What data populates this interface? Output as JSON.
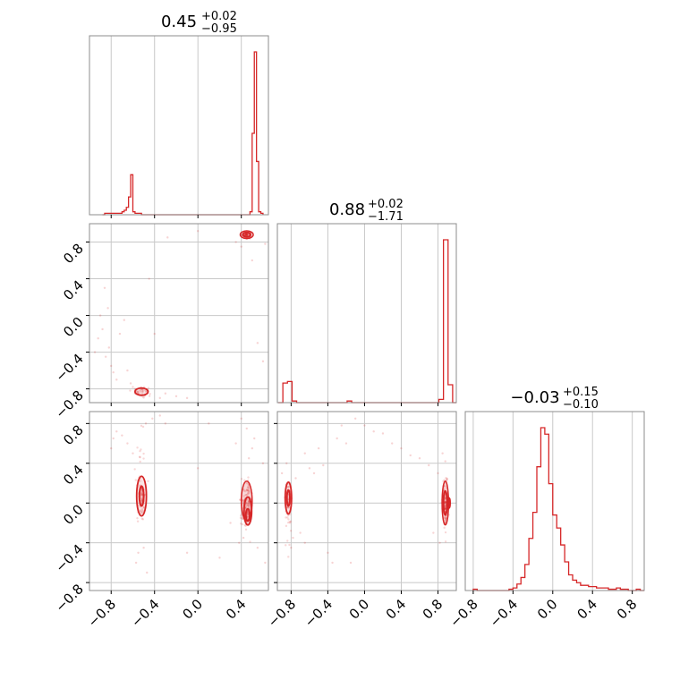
{
  "chart_data": {
    "type": "corner",
    "color": "#d62728",
    "grid": true,
    "parameters": [
      {
        "title": {
          "value": "0.45",
          "plus": "+0.02",
          "minus": "−0.95"
        },
        "range": [
          -1.0,
          0.65
        ],
        "ticks": [
          -0.8,
          -0.4,
          0.0,
          0.4
        ],
        "tick_labels": [
          "−0.8",
          "−0.4",
          "0.0",
          "0.4"
        ],
        "histogram": {
          "bins": [
            -0.88,
            -0.86,
            -0.84,
            -0.82,
            -0.8,
            -0.78,
            -0.76,
            -0.74,
            -0.72,
            -0.7,
            -0.68,
            -0.66,
            -0.64,
            -0.62,
            -0.6,
            -0.58,
            -0.56,
            -0.54,
            -0.52,
            -0.5,
            -0.48,
            -0.46,
            -0.44,
            -0.42,
            -0.4,
            -0.38,
            -0.36,
            -0.34,
            -0.32,
            -0.3,
            -0.28,
            -0.26,
            -0.24,
            -0.22,
            -0.2,
            -0.18,
            -0.16,
            -0.14,
            -0.12,
            -0.1,
            -0.08,
            -0.06,
            -0.04,
            -0.02,
            0.0,
            0.02,
            0.04,
            0.06,
            0.08,
            0.1,
            0.12,
            0.14,
            0.16,
            0.18,
            0.2,
            0.22,
            0.24,
            0.26,
            0.28,
            0.3,
            0.32,
            0.34,
            0.36,
            0.38,
            0.4,
            0.42,
            0.44,
            0.46,
            0.48,
            0.5,
            0.52,
            0.54,
            0.56,
            0.58
          ],
          "counts": [
            0,
            1,
            1,
            1,
            1,
            1,
            1,
            1,
            1,
            2,
            3,
            5,
            12,
            27,
            2,
            1,
            1,
            1,
            0,
            0,
            0,
            0,
            0,
            0,
            0,
            0,
            0,
            0,
            0,
            0,
            0,
            0,
            0,
            0,
            0,
            0,
            0,
            0,
            0,
            0,
            0,
            0,
            0,
            0,
            0,
            0,
            0,
            0,
            0,
            0,
            0,
            0,
            0,
            0,
            0,
            0,
            0,
            0,
            0,
            0,
            0,
            0,
            0,
            0,
            0,
            0,
            0,
            0,
            2,
            55,
            110,
            36,
            2,
            1
          ]
        }
      },
      {
        "title": {
          "value": "0.88",
          "plus": "+0.02",
          "minus": "−1.71"
        },
        "range": [
          -0.95,
          1.0
        ],
        "ticks": [
          -0.8,
          -0.4,
          0.0,
          0.4,
          0.8
        ],
        "tick_labels": [
          "−0.8",
          "−0.4",
          "0.0",
          "0.4",
          "0.8"
        ],
        "histogram": {
          "bins": [
            -0.94,
            -0.89,
            -0.84,
            -0.79,
            -0.74,
            -0.69,
            -0.64,
            -0.59,
            -0.54,
            -0.49,
            -0.44,
            -0.39,
            -0.34,
            -0.29,
            -0.24,
            -0.19,
            -0.14,
            -0.09,
            -0.04,
            0.01,
            0.06,
            0.11,
            0.16,
            0.21,
            0.26,
            0.31,
            0.36,
            0.41,
            0.46,
            0.51,
            0.56,
            0.61,
            0.66,
            0.71,
            0.76,
            0.81,
            0.86,
            0.91,
            0.96
          ],
          "counts": [
            0,
            12,
            13,
            1,
            0,
            0,
            0,
            0,
            0,
            0,
            0,
            0,
            0,
            0,
            0,
            1,
            0,
            0,
            0,
            0,
            0,
            0,
            0,
            0,
            0,
            0,
            0,
            0,
            0,
            0,
            0,
            0,
            0,
            0,
            0,
            2,
            100,
            11,
            0
          ]
        }
      },
      {
        "title": {
          "value": "−0.03",
          "plus": "+0.15",
          "minus": "−0.10"
        },
        "range": [
          -0.88,
          0.92
        ],
        "ticks": [
          -0.8,
          -0.4,
          0.0,
          0.4,
          0.8
        ],
        "tick_labels": [
          "−0.8",
          "−0.4",
          "0.0",
          "0.4",
          "0.8"
        ],
        "histogram": {
          "bins": [
            -0.8,
            -0.76,
            -0.72,
            -0.68,
            -0.64,
            -0.6,
            -0.56,
            -0.52,
            -0.48,
            -0.44,
            -0.4,
            -0.36,
            -0.32,
            -0.28,
            -0.24,
            -0.2,
            -0.16,
            -0.12,
            -0.08,
            -0.04,
            0.0,
            0.04,
            0.08,
            0.12,
            0.16,
            0.2,
            0.24,
            0.28,
            0.32,
            0.36,
            0.4,
            0.44,
            0.48,
            0.52,
            0.56,
            0.6,
            0.64,
            0.68,
            0.72,
            0.76,
            0.8,
            0.84,
            0.88
          ],
          "counts": [
            1,
            0,
            0,
            0,
            0,
            0,
            0,
            0,
            0,
            1,
            2,
            5,
            10,
            20,
            40,
            60,
            95,
            125,
            120,
            82,
            58,
            48,
            35,
            22,
            12,
            8,
            6,
            4,
            4,
            3,
            3,
            2,
            2,
            2,
            1,
            1,
            2,
            1,
            1,
            0,
            0,
            1,
            0
          ]
        }
      }
    ],
    "pairs": [
      {
        "x_param": 0,
        "y_param": 1,
        "clusters": [
          {
            "cx": 0.45,
            "cy": 0.88,
            "sx": 0.02,
            "sy": 0.016,
            "n": 70
          },
          {
            "cx": -0.52,
            "cy": -0.83,
            "sx": 0.03,
            "sy": 0.03,
            "n": 35
          }
        ],
        "stray_points": [
          [
            -0.92,
            -0.25
          ],
          [
            -0.88,
            -0.15
          ],
          [
            -0.85,
            -0.45
          ],
          [
            -0.82,
            -0.35
          ],
          [
            -0.8,
            -0.55
          ],
          [
            -0.78,
            -0.62
          ],
          [
            -0.75,
            -0.7
          ],
          [
            -0.72,
            -0.2
          ],
          [
            -0.68,
            -0.05
          ],
          [
            -0.65,
            -0.6
          ],
          [
            -0.62,
            -0.74
          ],
          [
            -0.6,
            -0.78
          ],
          [
            -0.58,
            -0.8
          ],
          [
            -0.55,
            -0.86
          ],
          [
            -0.45,
            0.4
          ],
          [
            -0.4,
            -0.2
          ],
          [
            -0.35,
            -0.9
          ],
          [
            -0.3,
            -0.85
          ],
          [
            -0.28,
            0.85
          ],
          [
            -0.2,
            -0.88
          ],
          [
            -0.1,
            -0.9
          ],
          [
            0.0,
            0.92
          ],
          [
            0.35,
            0.8
          ],
          [
            0.4,
            0.75
          ],
          [
            0.5,
            0.6
          ],
          [
            0.55,
            -0.3
          ],
          [
            0.6,
            -0.5
          ],
          [
            0.62,
            0.78
          ],
          [
            -0.95,
            -0.4
          ],
          [
            -0.9,
            0.0
          ],
          [
            -0.86,
            0.3
          ],
          [
            -0.83,
            0.08
          ]
        ],
        "contours": [
          {
            "cx": 0.45,
            "cy": 0.88,
            "rx": 0.06,
            "ry": 0.042,
            "width": 1.5
          },
          {
            "cx": 0.45,
            "cy": 0.88,
            "rx": 0.035,
            "ry": 0.025,
            "width": 2
          },
          {
            "cx": -0.52,
            "cy": -0.83,
            "rx": 0.06,
            "ry": 0.04,
            "width": 1.8
          }
        ]
      },
      {
        "x_param": 0,
        "y_param": 2,
        "clusters": [
          {
            "cx": 0.45,
            "cy": 0.0,
            "sx": 0.025,
            "sy": 0.11,
            "n": 120
          },
          {
            "cx": -0.52,
            "cy": 0.07,
            "sx": 0.02,
            "sy": 0.09,
            "n": 60
          },
          {
            "cx": -0.52,
            "cy": 0.3,
            "sx": 0.02,
            "sy": 0.3,
            "n": 25
          }
        ],
        "stray_points": [
          [
            -0.8,
            0.55
          ],
          [
            -0.78,
            0.65
          ],
          [
            -0.75,
            0.72
          ],
          [
            -0.7,
            0.68
          ],
          [
            -0.65,
            0.6
          ],
          [
            -0.6,
            0.5
          ],
          [
            -0.55,
            -0.5
          ],
          [
            -0.5,
            -0.45
          ],
          [
            -0.48,
            0.8
          ],
          [
            -0.42,
            0.85
          ],
          [
            -0.35,
            0.88
          ],
          [
            -0.3,
            0.8
          ],
          [
            -0.1,
            -0.5
          ],
          [
            0.0,
            0.35
          ],
          [
            0.1,
            0.8
          ],
          [
            0.2,
            -0.55
          ],
          [
            0.3,
            -0.2
          ],
          [
            0.35,
            0.6
          ],
          [
            0.4,
            0.85
          ],
          [
            0.45,
            0.75
          ],
          [
            0.5,
            0.55
          ],
          [
            0.55,
            -0.45
          ],
          [
            0.62,
            -0.6
          ],
          [
            0.6,
            0.4
          ],
          [
            0.42,
            -0.35
          ],
          [
            0.47,
            0.45
          ],
          [
            -0.57,
            -0.6
          ],
          [
            -0.47,
            -0.7
          ],
          [
            0.38,
            -0.4
          ],
          [
            0.52,
            0.65
          ]
        ],
        "contours": [
          {
            "cx": 0.45,
            "cy": 0.02,
            "rx": 0.05,
            "ry": 0.2,
            "width": 1.5
          },
          {
            "cx": 0.46,
            "cy": -0.08,
            "rx": 0.035,
            "ry": 0.14,
            "width": 2
          },
          {
            "cx": 0.46,
            "cy": -0.12,
            "rx": 0.018,
            "ry": 0.06,
            "width": 2
          },
          {
            "cx": -0.52,
            "cy": 0.07,
            "rx": 0.045,
            "ry": 0.2,
            "width": 1.8
          },
          {
            "cx": -0.52,
            "cy": 0.07,
            "rx": 0.02,
            "ry": 0.1,
            "width": 2
          }
        ]
      },
      {
        "x_param": 1,
        "y_param": 2,
        "clusters": [
          {
            "cx": 0.88,
            "cy": 0.0,
            "sx": 0.015,
            "sy": 0.12,
            "n": 120
          },
          {
            "cx": -0.83,
            "cy": 0.05,
            "sx": 0.02,
            "sy": 0.08,
            "n": 55
          },
          {
            "cx": -0.83,
            "cy": -0.2,
            "sx": 0.02,
            "sy": 0.2,
            "n": 20
          }
        ],
        "stray_points": [
          [
            -0.9,
            0.3
          ],
          [
            -0.85,
            0.4
          ],
          [
            -0.8,
            -0.45
          ],
          [
            -0.78,
            -0.35
          ],
          [
            -0.75,
            0.25
          ],
          [
            -0.7,
            -0.3
          ],
          [
            -0.65,
            -0.4
          ],
          [
            -0.6,
            0.35
          ],
          [
            -0.55,
            0.3
          ],
          [
            -0.5,
            0.55
          ],
          [
            -0.45,
            0.38
          ],
          [
            -0.4,
            -0.5
          ],
          [
            -0.35,
            -0.6
          ],
          [
            -0.3,
            0.65
          ],
          [
            -0.25,
            0.78
          ],
          [
            -0.2,
            0.6
          ],
          [
            -0.1,
            0.85
          ],
          [
            0.0,
            0.78
          ],
          [
            0.1,
            0.72
          ],
          [
            0.2,
            0.7
          ],
          [
            0.3,
            0.6
          ],
          [
            0.4,
            0.55
          ],
          [
            0.5,
            0.48
          ],
          [
            0.6,
            0.45
          ],
          [
            0.7,
            0.38
          ],
          [
            0.75,
            -0.3
          ],
          [
            0.8,
            0.3
          ],
          [
            0.85,
            0.5
          ],
          [
            0.88,
            0.42
          ],
          [
            0.82,
            -0.4
          ],
          [
            -0.65,
            0.5
          ],
          [
            -0.15,
            -0.6
          ]
        ],
        "contours": [
          {
            "cx": 0.88,
            "cy": 0.0,
            "rx": 0.035,
            "ry": 0.22,
            "width": 1.5
          },
          {
            "cx": 0.88,
            "cy": 0.0,
            "rx": 0.02,
            "ry": 0.12,
            "width": 2
          },
          {
            "cx": 0.92,
            "cy": 0.0,
            "rx": 0.012,
            "ry": 0.05,
            "width": 2
          },
          {
            "cx": -0.83,
            "cy": 0.05,
            "rx": 0.035,
            "ry": 0.16,
            "width": 1.8
          },
          {
            "cx": -0.83,
            "cy": 0.05,
            "rx": 0.016,
            "ry": 0.08,
            "width": 2
          }
        ]
      }
    ]
  }
}
